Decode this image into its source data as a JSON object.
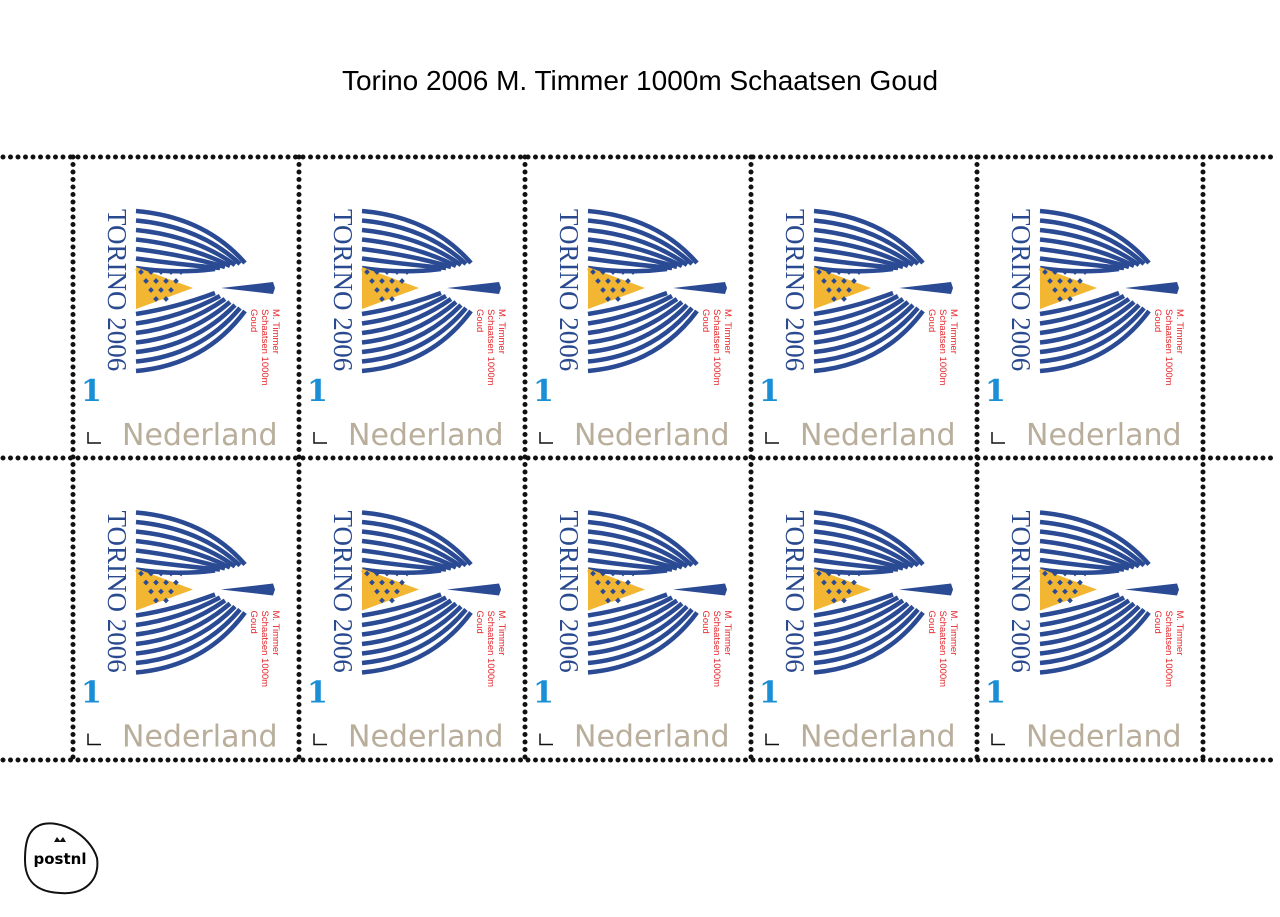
{
  "header": {
    "title": "Torino 2006 M. Timmer 1000m Schaatsen Goud"
  },
  "stamps": [
    {
      "event": "TORINO 2006",
      "lines": [
        "M. Timmer",
        "Schaatsen 1000m",
        "Goud"
      ],
      "value": "1",
      "country": "Nederland"
    },
    {
      "event": "TORINO 2006",
      "lines": [
        "M. Timmer",
        "Schaatsen 1000m",
        "Goud"
      ],
      "value": "1",
      "country": "Nederland"
    },
    {
      "event": "TORINO 2006",
      "lines": [
        "M. Timmer",
        "Schaatsen 1000m",
        "Goud"
      ],
      "value": "1",
      "country": "Nederland"
    },
    {
      "event": "TORINO 2006",
      "lines": [
        "M. Timmer",
        "Schaatsen 1000m",
        "Goud"
      ],
      "value": "1",
      "country": "Nederland"
    },
    {
      "event": "TORINO 2006",
      "lines": [
        "M. Timmer",
        "Schaatsen 1000m",
        "Goud"
      ],
      "value": "1",
      "country": "Nederland"
    },
    {
      "event": "TORINO 2006",
      "lines": [
        "M. Timmer",
        "Schaatsen 1000m",
        "Goud"
      ],
      "value": "1",
      "country": "Nederland"
    },
    {
      "event": "TORINO 2006",
      "lines": [
        "M. Timmer",
        "Schaatsen 1000m",
        "Goud"
      ],
      "value": "1",
      "country": "Nederland"
    },
    {
      "event": "TORINO 2006",
      "lines": [
        "M. Timmer",
        "Schaatsen 1000m",
        "Goud"
      ],
      "value": "1",
      "country": "Nederland"
    },
    {
      "event": "TORINO 2006",
      "lines": [
        "M. Timmer",
        "Schaatsen 1000m",
        "Goud"
      ],
      "value": "1",
      "country": "Nederland"
    },
    {
      "event": "TORINO 2006",
      "lines": [
        "M. Timmer",
        "Schaatsen 1000m",
        "Goud"
      ],
      "value": "1",
      "country": "Nederland"
    }
  ],
  "logo": {
    "text": "postnl"
  }
}
